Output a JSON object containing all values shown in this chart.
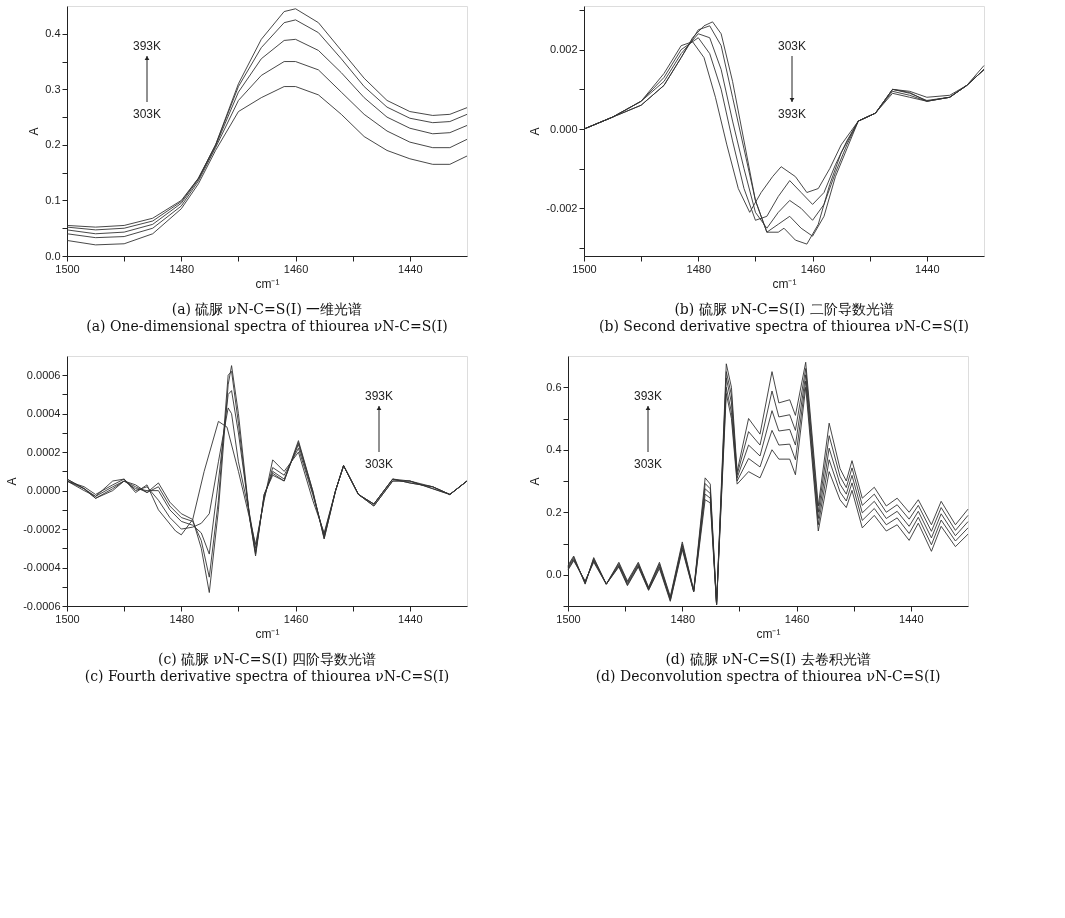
{
  "chart_data": [
    {
      "type": "line",
      "title": "(a) 硫脲 νN-C=S(I) 一维光谱",
      "subtitle": "(a) One-dimensional spectra of thiourea νN-C=S(I)",
      "xlabel": "cm⁻¹",
      "ylabel": "A",
      "annotations": [
        "393K",
        "303K"
      ],
      "grid": false,
      "marker": "none",
      "line_style": "solid",
      "xlim": [
        1500,
        1430
      ],
      "xticks": [
        1500,
        {
          "value": 1490,
          "label": null
        },
        1480,
        {
          "value": 1470,
          "label": null
        },
        1460,
        {
          "value": 1450,
          "label": null
        },
        1440
      ],
      "ylim": [
        0,
        0.45
      ],
      "yticks": [
        {
          "value": 0,
          "label": "0.0"
        },
        {
          "value": 0.05,
          "label": null
        },
        0.1,
        {
          "value": 0.15,
          "label": null
        },
        0.2,
        {
          "value": 0.25,
          "label": null
        },
        0.3,
        {
          "value": 0.35,
          "label": null
        },
        0.4
      ],
      "x": [
        1500,
        1495,
        1490,
        1485,
        1480,
        1477,
        1474,
        1470,
        1466,
        1462,
        1460,
        1456,
        1452,
        1448,
        1444,
        1440,
        1436,
        1433,
        1430
      ],
      "series": [
        {
          "color": "#333333",
          "values": [
            0.028,
            0.02,
            0.022,
            0.04,
            0.085,
            0.13,
            0.19,
            0.26,
            0.285,
            0.305,
            0.305,
            0.29,
            0.255,
            0.215,
            0.19,
            0.175,
            0.165,
            0.165,
            0.18
          ]
        },
        {
          "color": "#333333",
          "values": [
            0.04,
            0.033,
            0.035,
            0.05,
            0.09,
            0.135,
            0.195,
            0.28,
            0.325,
            0.35,
            0.35,
            0.335,
            0.295,
            0.255,
            0.225,
            0.205,
            0.195,
            0.195,
            0.21
          ]
        },
        {
          "color": "#333333",
          "values": [
            0.047,
            0.04,
            0.043,
            0.057,
            0.095,
            0.138,
            0.198,
            0.295,
            0.355,
            0.388,
            0.39,
            0.37,
            0.33,
            0.285,
            0.25,
            0.23,
            0.22,
            0.222,
            0.235
          ]
        },
        {
          "color": "#333333",
          "values": [
            0.052,
            0.047,
            0.05,
            0.063,
            0.098,
            0.14,
            0.2,
            0.305,
            0.375,
            0.42,
            0.425,
            0.402,
            0.355,
            0.305,
            0.268,
            0.248,
            0.24,
            0.242,
            0.255
          ]
        },
        {
          "color": "#333333",
          "values": [
            0.055,
            0.052,
            0.055,
            0.068,
            0.1,
            0.14,
            0.2,
            0.31,
            0.39,
            0.44,
            0.445,
            0.42,
            0.37,
            0.32,
            0.28,
            0.26,
            0.253,
            0.255,
            0.267
          ]
        }
      ]
    },
    {
      "type": "line",
      "title": "(b) 硫脲 νN-C=S(I) 二阶导数光谱",
      "subtitle": "(b) Second derivative spectra of thiourea νN-C=S(I)",
      "xlabel": "cm⁻¹",
      "ylabel": "A",
      "annotations": [
        "303K",
        "393K"
      ],
      "grid": false,
      "marker": "none",
      "line_style": "solid",
      "xlim": [
        1500,
        1430
      ],
      "xticks": [
        1500,
        {
          "value": 1490,
          "label": null
        },
        1480,
        {
          "value": 1470,
          "label": null
        },
        1460,
        {
          "value": 1450,
          "label": null
        },
        1440
      ],
      "ylim": [
        -0.0032,
        0.0031
      ],
      "yticks": [
        {
          "value": -0.003,
          "label": null
        },
        {
          "value": -0.002,
          "label": "-0.002"
        },
        {
          "value": -0.001,
          "label": null
        },
        {
          "value": 0,
          "label": "0.000"
        },
        {
          "value": 0.001,
          "label": null
        },
        {
          "value": 0.002,
          "label": "0.002"
        },
        {
          "value": 0.003,
          "label": null
        }
      ],
      "series": [
        {
          "color": "#333333",
          "x": [
            1500,
            1495,
            1490,
            1486,
            1483,
            1481,
            1479,
            1477,
            1475,
            1473,
            1471,
            1469,
            1467,
            1465.5,
            1463,
            1461,
            1459,
            1457,
            1455,
            1452,
            1449,
            1446,
            1443,
            1440,
            1436,
            1433,
            1430
          ],
          "values": [
            0,
            0.0003,
            0.0007,
            0.0014,
            0.0021,
            0.0022,
            0.0018,
            0.0008,
            -0.0004,
            -0.0015,
            -0.0021,
            -0.0016,
            -0.0012,
            -0.00095,
            -0.0012,
            -0.0016,
            -0.0015,
            -0.001,
            -0.0004,
            0.0002,
            0.0004,
            0.0009,
            0.0008,
            0.0007,
            0.0008,
            0.0011,
            0.0015
          ]
        },
        {
          "color": "#333333",
          "x": [
            1500,
            1495,
            1490,
            1486,
            1483,
            1480,
            1478,
            1476,
            1474,
            1472,
            1470,
            1468,
            1466,
            1464,
            1462,
            1460,
            1458,
            1456,
            1454,
            1452,
            1449,
            1446,
            1443,
            1440,
            1436,
            1433,
            1430
          ],
          "values": [
            0,
            0.0003,
            0.0007,
            0.0013,
            0.002,
            0.0023,
            0.0019,
            0.001,
            -0.0003,
            -0.0015,
            -0.0023,
            -0.0022,
            -0.0017,
            -0.0013,
            -0.0016,
            -0.0019,
            -0.0016,
            -0.0009,
            -0.0003,
            0.0002,
            0.0004,
            0.00095,
            0.00085,
            0.0007,
            0.0008,
            0.0011,
            0.0015
          ]
        },
        {
          "color": "#333333",
          "x": [
            1500,
            1495,
            1490,
            1486,
            1483,
            1480,
            1478,
            1476,
            1474,
            1472,
            1470,
            1468,
            1466,
            1464,
            1462,
            1460,
            1458,
            1456,
            1454,
            1452,
            1449,
            1446,
            1443,
            1440,
            1436,
            1433,
            1430
          ],
          "values": [
            0,
            0.0003,
            0.0007,
            0.0012,
            0.0019,
            0.0024,
            0.0023,
            0.0015,
            0.0002,
            -0.001,
            -0.0021,
            -0.0025,
            -0.0021,
            -0.0018,
            -0.002,
            -0.0023,
            -0.0019,
            -0.0011,
            -0.0004,
            0.0002,
            0.0004,
            0.001,
            0.0009,
            0.00072,
            0.0008,
            0.0011,
            0.0015
          ]
        },
        {
          "color": "#333333",
          "x": [
            1500,
            1495,
            1490,
            1486,
            1483,
            1480,
            1478,
            1476,
            1474,
            1472,
            1470,
            1468,
            1466,
            1464,
            1462,
            1460,
            1458,
            1456,
            1454,
            1452,
            1449,
            1446,
            1443,
            1440,
            1436,
            1433,
            1430
          ],
          "values": [
            0,
            0.0003,
            0.0006,
            0.0011,
            0.0018,
            0.0025,
            0.0026,
            0.0021,
            0.0008,
            -0.0005,
            -0.0018,
            -0.0026,
            -0.0024,
            -0.0022,
            -0.0025,
            -0.0027,
            -0.0022,
            -0.0012,
            -0.0005,
            0.0002,
            0.0004,
            0.001,
            0.00092,
            0.0007,
            0.0008,
            0.0011,
            0.0015
          ]
        },
        {
          "color": "#333333",
          "x": [
            1500,
            1495,
            1490,
            1486,
            1483,
            1481,
            1479,
            1477.5,
            1476,
            1474,
            1472,
            1470,
            1468,
            1466,
            1465,
            1463,
            1461,
            1459,
            1457,
            1455,
            1452,
            1449,
            1446,
            1443,
            1440,
            1436,
            1433,
            1430
          ],
          "values": [
            0,
            0.0003,
            0.0006,
            0.0011,
            0.0018,
            0.0023,
            0.0026,
            0.0027,
            0.0024,
            0.0012,
            -0.0003,
            -0.0018,
            -0.0026,
            -0.0026,
            -0.0025,
            -0.0028,
            -0.0029,
            -0.0024,
            -0.0014,
            -0.0006,
            0.0002,
            0.0004,
            0.001,
            0.00095,
            0.0008,
            0.00085,
            0.0011,
            0.0016
          ]
        }
      ]
    },
    {
      "type": "line",
      "title": "(c) 硫脲 νN-C=S(I) 四阶导数光谱",
      "subtitle": "(c) Fourth derivative spectra of thiourea νN-C=S(I)",
      "xlabel": "cm⁻¹",
      "ylabel": "A",
      "annotations": [
        "393K",
        "303K"
      ],
      "grid": false,
      "marker": "none",
      "line_style": "solid",
      "xlim": [
        1500,
        1430
      ],
      "xticks": [
        1500,
        {
          "value": 1490,
          "label": null
        },
        1480,
        {
          "value": 1470,
          "label": null
        },
        1460,
        {
          "value": 1450,
          "label": null
        },
        1440
      ],
      "ylim": [
        -0.0006,
        0.0007
      ],
      "yticks": [
        {
          "value": -0.0006,
          "label": "-0.0006"
        },
        {
          "value": -0.0005,
          "label": null
        },
        {
          "value": -0.0004,
          "label": "-0.0004"
        },
        {
          "value": -0.0003,
          "label": null
        },
        {
          "value": -0.0002,
          "label": "-0.0002"
        },
        {
          "value": -0.0001,
          "label": null
        },
        {
          "value": 0,
          "label": "0.0000"
        },
        {
          "value": 0.0001,
          "label": null
        },
        {
          "value": 0.0002,
          "label": "0.0002"
        },
        {
          "value": 0.0003,
          "label": null
        },
        {
          "value": 0.0004,
          "label": "0.0004"
        },
        {
          "value": 0.0005,
          "label": null
        },
        {
          "value": 0.0006,
          "label": "0.0006"
        }
      ],
      "x": [
        1500,
        1497,
        1495,
        1492,
        1490,
        1488,
        1486,
        1484,
        1482,
        1480,
        1478,
        1476.5,
        1475.1,
        1473.5,
        1471.8,
        1471.2,
        1470,
        1468,
        1467,
        1465.5,
        1464,
        1462,
        1459.5,
        1457,
        1455,
        1453,
        1451.6,
        1449,
        1446.3,
        1443,
        1440,
        1436,
        1433,
        1430
      ],
      "series": [
        {
          "color": "#333333",
          "x": [
            1500,
            1497,
            1495,
            1492,
            1490,
            1488,
            1486,
            1484,
            1481,
            1480,
            1478,
            1476,
            1473.5,
            1472,
            1470,
            1468,
            1467,
            1465.5,
            1464,
            1462,
            1459.5,
            1457,
            1455,
            1453,
            1451.6,
            1449,
            1446.3,
            1443,
            1440,
            1436,
            1433,
            1430
          ],
          "values": [
            5e-05,
            0.0,
            -3e-05,
            5e-05,
            6e-05,
            -1e-05,
            3e-05,
            -0.0001,
            -0.00021,
            -0.00023,
            -0.00015,
            0.0001,
            0.00036,
            0.00033,
            0.0001,
            -0.00015,
            -0.00028,
            -5e-05,
            0.00016,
            0.0001,
            0.0002,
            -5e-05,
            -0.00022,
            0.0,
            0.00013,
            -2e-05,
            -7e-05,
            6e-05,
            4e-05,
            2e-05,
            -2e-05,
            5e-05
          ]
        },
        {
          "color": "#333333",
          "values": [
            5e-05,
            2e-05,
            -2e-05,
            3e-05,
            6e-05,
            0.0,
            2e-05,
            -5e-05,
            -0.00014,
            -0.0002,
            -0.00019,
            -0.00017,
            -0.00012,
            0.00015,
            0.00043,
            0.0004,
            0.00015,
            -0.00013,
            -0.0003,
            -4e-05,
            0.00012,
            8e-05,
            0.00022,
            -2e-05,
            -0.00023,
            0.0,
            0.00013,
            -2e-05,
            -7e-05,
            6e-05,
            4e-05,
            2e-05,
            -2e-05,
            5e-05
          ]
        },
        {
          "color": "#333333",
          "values": [
            5e-05,
            1e-05,
            -3e-05,
            2e-05,
            5e-05,
            1e-05,
            0.0,
            0.0,
            -0.0001,
            -0.00016,
            -0.00018,
            -0.00022,
            -0.00033,
            5e-05,
            0.0005,
            0.00052,
            0.0003,
            -0.00014,
            -0.00032,
            -3e-05,
            0.0001,
            6e-05,
            0.00024,
            -1e-05,
            -0.00024,
            0.0,
            0.00013,
            -2e-05,
            -7e-05,
            6e-05,
            5e-05,
            2e-05,
            -2e-05,
            5e-05
          ]
        },
        {
          "color": "#333333",
          "values": [
            6e-05,
            1e-05,
            -4e-05,
            1e-05,
            5e-05,
            2e-05,
            -1e-05,
            2e-05,
            -8e-05,
            -0.00014,
            -0.00016,
            -0.00026,
            -0.00045,
            -5e-05,
            0.0006,
            0.00062,
            0.00035,
            -0.00015,
            -0.00033,
            -2e-05,
            9e-05,
            5e-05,
            0.00025,
            0.0,
            -0.00025,
            0.0,
            0.00013,
            -2e-05,
            -8e-05,
            5e-05,
            5e-05,
            1e-05,
            -2e-05,
            5e-05
          ]
        },
        {
          "color": "#333333",
          "values": [
            6e-05,
            1e-05,
            -4e-05,
            0.0,
            5e-05,
            3e-05,
            -1e-05,
            4e-05,
            -6e-05,
            -0.00012,
            -0.00015,
            -0.0003,
            -0.00053,
            -0.0001,
            0.00055,
            0.00065,
            0.0004,
            -0.00015,
            -0.00034,
            -2e-05,
            8e-05,
            5e-05,
            0.00026,
            0.0,
            -0.00025,
            0.0,
            0.00013,
            -2e-05,
            -8e-05,
            5e-05,
            5e-05,
            1e-05,
            -2e-05,
            5e-05
          ]
        }
      ]
    },
    {
      "type": "line",
      "title": "(d) 硫脲 νN-C=S(I) 去卷积光谱",
      "subtitle": "(d) Deconvolution spectra of thiourea νN-C=S(I)",
      "xlabel": "cm⁻¹",
      "ylabel": "A",
      "annotations": [
        "393K",
        "303K"
      ],
      "grid": false,
      "marker": "none",
      "line_style": "solid",
      "xlim": [
        1500,
        1430
      ],
      "xticks": [
        1500,
        {
          "value": 1490,
          "label": null
        },
        1480,
        {
          "value": 1470,
          "label": null
        },
        1460,
        {
          "value": 1450,
          "label": null
        },
        1440
      ],
      "ylim": [
        -0.1,
        0.7
      ],
      "yticks": [
        {
          "value": -0.1,
          "label": null
        },
        {
          "value": 0,
          "label": "0.0"
        },
        {
          "value": 0.1,
          "label": null
        },
        0.2,
        {
          "value": 0.3,
          "label": null
        },
        0.4,
        {
          "value": 0.5,
          "label": null
        },
        0.6
      ],
      "x": [
        1500,
        1499,
        1497,
        1495.5,
        1493.3,
        1491.1,
        1489.6,
        1487.7,
        1485.9,
        1484,
        1482.1,
        1480,
        1478,
        1476,
        1475.1,
        1474,
        1472.3,
        1471.4,
        1470.4,
        1468.4,
        1466.4,
        1464.3,
        1463.1,
        1461.2,
        1460.2,
        1458.4,
        1456.2,
        1454.3,
        1452.4,
        1451.3,
        1450.3,
        1448.5,
        1446.4,
        1444.3,
        1442.4,
        1440.3,
        1438.7,
        1436.4,
        1434.7,
        1432.2,
        1430
      ],
      "series": [
        {
          "color": "#333333",
          "values": [
            0.015,
            0.045,
            -0.02,
            0.04,
            -0.03,
            0.025,
            -0.035,
            0.025,
            -0.05,
            0.02,
            -0.085,
            0.08,
            -0.055,
            0.24,
            0.23,
            -0.095,
            0.58,
            0.5,
            0.29,
            0.33,
            0.31,
            0.4,
            0.37,
            0.37,
            0.32,
            0.6,
            0.14,
            0.33,
            0.24,
            0.215,
            0.27,
            0.15,
            0.19,
            0.14,
            0.16,
            0.11,
            0.165,
            0.075,
            0.155,
            0.09,
            0.13
          ]
        },
        {
          "color": "#333333",
          "values": [
            0.018,
            0.048,
            -0.022,
            0.044,
            -0.03,
            0.028,
            -0.032,
            0.028,
            -0.048,
            0.025,
            -0.082,
            0.086,
            -0.054,
            0.258,
            0.245,
            -0.095,
            0.6,
            0.52,
            0.3,
            0.372,
            0.345,
            0.462,
            0.415,
            0.418,
            0.368,
            0.62,
            0.16,
            0.368,
            0.265,
            0.236,
            0.294,
            0.174,
            0.212,
            0.16,
            0.182,
            0.132,
            0.184,
            0.096,
            0.175,
            0.108,
            0.15
          ]
        },
        {
          "color": "#333333",
          "values": [
            0.022,
            0.052,
            -0.025,
            0.048,
            -0.03,
            0.032,
            -0.028,
            0.032,
            -0.045,
            0.03,
            -0.078,
            0.092,
            -0.052,
            0.275,
            0.26,
            -0.095,
            0.63,
            0.55,
            0.31,
            0.415,
            0.38,
            0.525,
            0.46,
            0.465,
            0.415,
            0.64,
            0.18,
            0.405,
            0.29,
            0.258,
            0.318,
            0.198,
            0.235,
            0.18,
            0.203,
            0.155,
            0.203,
            0.118,
            0.195,
            0.125,
            0.17
          ]
        },
        {
          "color": "#333333",
          "values": [
            0.026,
            0.056,
            -0.028,
            0.052,
            -0.03,
            0.036,
            -0.024,
            0.036,
            -0.042,
            0.035,
            -0.074,
            0.098,
            -0.051,
            0.292,
            0.275,
            -0.095,
            0.65,
            0.575,
            0.32,
            0.458,
            0.415,
            0.588,
            0.505,
            0.512,
            0.462,
            0.66,
            0.2,
            0.445,
            0.315,
            0.279,
            0.342,
            0.222,
            0.258,
            0.2,
            0.224,
            0.178,
            0.222,
            0.139,
            0.215,
            0.142,
            0.19
          ]
        },
        {
          "color": "#333333",
          "values": [
            0.03,
            0.06,
            -0.03,
            0.055,
            -0.03,
            0.04,
            -0.02,
            0.04,
            -0.04,
            0.04,
            -0.07,
            0.105,
            -0.05,
            0.31,
            0.29,
            -0.095,
            0.675,
            0.6,
            0.33,
            0.5,
            0.45,
            0.65,
            0.55,
            0.56,
            0.51,
            0.68,
            0.22,
            0.485,
            0.34,
            0.3,
            0.365,
            0.245,
            0.28,
            0.22,
            0.245,
            0.2,
            0.24,
            0.16,
            0.235,
            0.16,
            0.21
          ]
        }
      ]
    }
  ]
}
